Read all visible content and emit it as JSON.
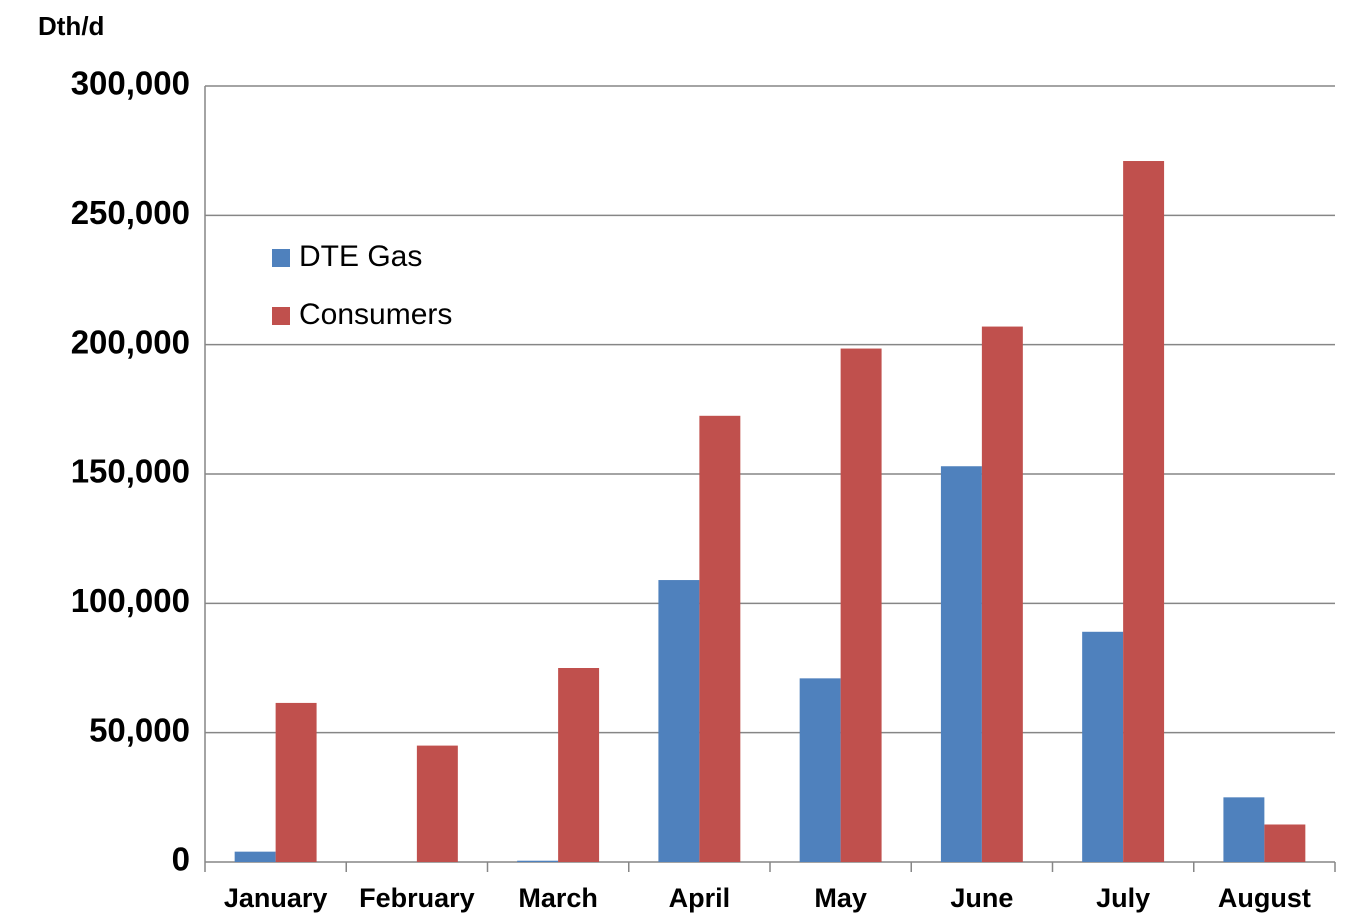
{
  "chart_data": {
    "type": "bar",
    "y_axis_label": "Dth/d",
    "categories": [
      "January",
      "February",
      "March",
      "April",
      "May",
      "June",
      "July",
      "August"
    ],
    "series": [
      {
        "name": "DTE Gas",
        "color": "#4f81bd",
        "values": [
          4000,
          0,
          500,
          109000,
          71000,
          153000,
          89000,
          25000
        ]
      },
      {
        "name": "Consumers",
        "color": "#c0504d",
        "values": [
          61500,
          45000,
          75000,
          172500,
          198500,
          207000,
          271000,
          14500
        ]
      }
    ],
    "ylim": [
      0,
      300000
    ],
    "yticks": [
      0,
      {
        "value": 50000,
        "label": "50,000"
      },
      {
        "value": 100000,
        "label": "100,000"
      },
      {
        "value": 150000,
        "label": "150,000"
      },
      {
        "value": 200000,
        "label": "200,000"
      },
      {
        "value": 250000,
        "label": "250,000"
      },
      {
        "value": 300000,
        "label": "300,000"
      }
    ],
    "grid": true,
    "legend": "upper left"
  }
}
